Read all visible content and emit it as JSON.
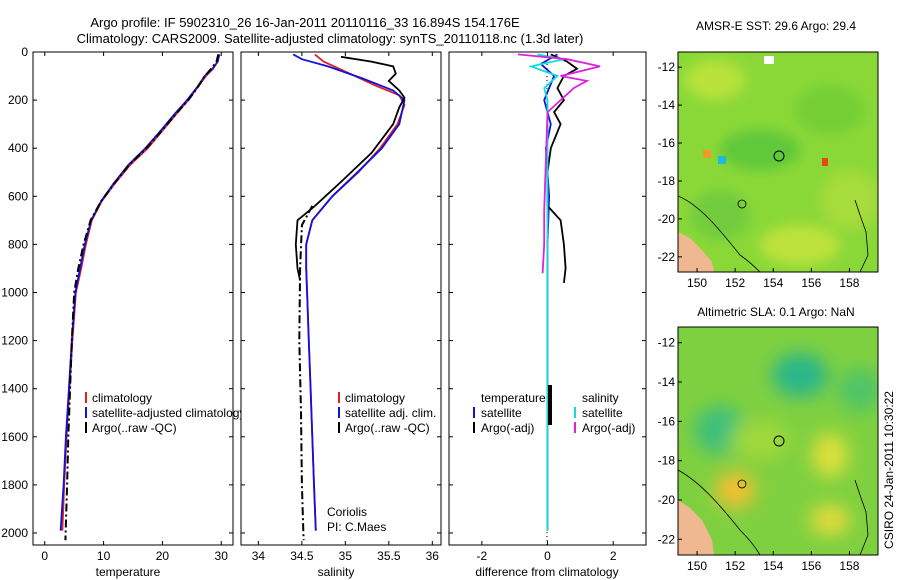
{
  "title_line1": "Argo profile: IF 5902310_26 16-Jan-2011 20110116_33 16.894S 154.176E",
  "title_line2": "Climatology: CARS2009. Satellite-adjusted climatology: synTS_20110118.nc (1.3d later)",
  "side_stamp": "CSIRO 24-Jan-2011 10:30:22",
  "colors": {
    "clim": "#dd2222",
    "sat": "#1111dd",
    "argo": "#000000",
    "cyan": "#11dddd",
    "magenta": "#dd22dd",
    "land": "#f0b890"
  },
  "chart_data": [
    {
      "id": "temperature",
      "type": "line",
      "xlabel": "temperature",
      "xlim": [
        -2,
        32
      ],
      "ylim": [
        2050,
        0
      ],
      "xticks": [
        0,
        10,
        20,
        30
      ],
      "yticks": [
        0,
        200,
        400,
        600,
        800,
        1000,
        1200,
        1400,
        1600,
        1800,
        2000
      ],
      "legend": [
        "climatology",
        "satellite-adjusted climatology",
        "Argo(..raw -QC)"
      ],
      "legend_position": "lower-right",
      "series": [
        {
          "name": "climatology",
          "color": "#dd2222",
          "style": "solid",
          "points": [
            [
              29.6,
              10
            ],
            [
              29.4,
              40
            ],
            [
              28.6,
              70
            ],
            [
              27.4,
              100
            ],
            [
              25.9,
              150
            ],
            [
              24.4,
              200
            ],
            [
              22.3,
              260
            ],
            [
              19.9,
              330
            ],
            [
              17.5,
              400
            ],
            [
              14.5,
              470
            ],
            [
              11.8,
              550
            ],
            [
              9.7,
              620
            ],
            [
              8.0,
              700
            ],
            [
              7.0,
              800
            ],
            [
              6.2,
              900
            ],
            [
              5.3,
              1000
            ],
            [
              4.7,
              1200
            ],
            [
              4.2,
              1400
            ],
            [
              3.7,
              1600
            ],
            [
              3.3,
              1800
            ],
            [
              3.0,
              1990
            ]
          ]
        },
        {
          "name": "satellite-adjusted climatology",
          "color": "#1111dd",
          "style": "solid",
          "points": [
            [
              29.7,
              10
            ],
            [
              29.4,
              40
            ],
            [
              28.5,
              70
            ],
            [
              27.2,
              100
            ],
            [
              25.8,
              150
            ],
            [
              24.2,
              200
            ],
            [
              22.0,
              260
            ],
            [
              19.6,
              330
            ],
            [
              17.1,
              400
            ],
            [
              14.2,
              470
            ],
            [
              11.6,
              550
            ],
            [
              9.6,
              620
            ],
            [
              7.9,
              700
            ],
            [
              6.8,
              800
            ],
            [
              6.0,
              900
            ],
            [
              5.2,
              1000
            ],
            [
              4.6,
              1200
            ],
            [
              4.1,
              1400
            ],
            [
              3.6,
              1600
            ],
            [
              3.2,
              1800
            ],
            [
              2.7,
              1990
            ]
          ]
        },
        {
          "name": "Argo(..raw -QC)",
          "color": "#000000",
          "style": "dashdot",
          "points": [
            [
              29.5,
              10
            ],
            [
              29.2,
              40
            ],
            [
              28.3,
              70
            ],
            [
              27.2,
              100
            ],
            [
              25.9,
              150
            ],
            [
              24.4,
              200
            ],
            [
              22.2,
              260
            ],
            [
              19.8,
              330
            ],
            [
              17.3,
              400
            ],
            [
              14.3,
              470
            ],
            [
              11.7,
              550
            ],
            [
              9.6,
              620
            ],
            [
              7.8,
              700
            ],
            [
              6.6,
              800
            ],
            [
              5.7,
              900
            ],
            [
              5.0,
              1000
            ],
            [
              4.6,
              1200
            ],
            [
              4.3,
              1400
            ],
            [
              4.0,
              1600
            ],
            [
              3.8,
              1800
            ],
            [
              3.5,
              2030
            ]
          ]
        }
      ]
    },
    {
      "id": "salinity",
      "type": "line",
      "xlabel": "salinity",
      "xlim": [
        33.8,
        36.1
      ],
      "ylim": [
        2050,
        0
      ],
      "xticks": [
        34,
        34.5,
        35,
        35.5,
        36
      ],
      "yticks": [
        0,
        200,
        400,
        600,
        800,
        1000,
        1200,
        1400,
        1600,
        1800,
        2000
      ],
      "legend": [
        "climatology",
        "satellite adj. clim.",
        "Argo(..raw -QC)"
      ],
      "legend_position": "lower-right",
      "annotation": [
        "Coriolis",
        "PI: C.Maes"
      ],
      "series": [
        {
          "name": "climatology",
          "color": "#dd2222",
          "style": "solid",
          "points": [
            [
              34.65,
              10
            ],
            [
              34.75,
              40
            ],
            [
              35.05,
              90
            ],
            [
              35.35,
              140
            ],
            [
              35.62,
              180
            ],
            [
              35.68,
              220
            ],
            [
              35.6,
              300
            ],
            [
              35.4,
              400
            ],
            [
              35.15,
              500
            ],
            [
              34.85,
              600
            ],
            [
              34.62,
              700
            ],
            [
              34.55,
              800
            ],
            [
              34.55,
              900
            ],
            [
              34.56,
              1000
            ],
            [
              34.58,
              1200
            ],
            [
              34.6,
              1400
            ],
            [
              34.62,
              1600
            ],
            [
              34.64,
              1800
            ],
            [
              34.66,
              1990
            ]
          ]
        },
        {
          "name": "satellite adj. clim.",
          "color": "#1111dd",
          "style": "solid",
          "points": [
            [
              34.4,
              10
            ],
            [
              34.5,
              30
            ],
            [
              34.8,
              60
            ],
            [
              35.2,
              110
            ],
            [
              35.55,
              160
            ],
            [
              35.68,
              200
            ],
            [
              35.62,
              300
            ],
            [
              35.42,
              400
            ],
            [
              35.14,
              500
            ],
            [
              34.85,
              600
            ],
            [
              34.62,
              700
            ],
            [
              34.55,
              800
            ],
            [
              34.55,
              900
            ],
            [
              34.56,
              1000
            ],
            [
              34.58,
              1200
            ],
            [
              34.6,
              1400
            ],
            [
              34.62,
              1600
            ],
            [
              34.64,
              1800
            ],
            [
              34.66,
              1990
            ]
          ]
        },
        {
          "name": "Argo(..raw -QC)",
          "color": "#000000",
          "style": "solid",
          "points": [
            [
              34.95,
              20
            ],
            [
              35.3,
              40
            ],
            [
              35.55,
              60
            ],
            [
              35.58,
              90
            ],
            [
              35.5,
              120
            ],
            [
              35.62,
              160
            ],
            [
              35.68,
              190
            ],
            [
              35.62,
              230
            ],
            [
              35.55,
              300
            ],
            [
              35.3,
              420
            ],
            [
              34.95,
              540
            ],
            [
              34.65,
              640
            ],
            [
              34.45,
              700
            ],
            [
              34.43,
              800
            ],
            [
              34.45,
              900
            ],
            [
              34.48,
              950
            ]
          ]
        },
        {
          "name": "Argo(..raw -QC) deep",
          "color": "#000000",
          "style": "dashdot",
          "points": [
            [
              34.62,
              640
            ],
            [
              34.5,
              720
            ],
            [
              34.48,
              900
            ],
            [
              34.47,
              1200
            ],
            [
              34.49,
              1500
            ],
            [
              34.5,
              1800
            ],
            [
              34.52,
              2030
            ]
          ]
        }
      ]
    },
    {
      "id": "difference",
      "type": "line",
      "xlabel": "difference from climatology",
      "xlim": [
        -3,
        3
      ],
      "ylim": [
        2050,
        0
      ],
      "xticks": [
        -2,
        0,
        2
      ],
      "yticks": [
        0,
        200,
        400,
        600,
        800,
        1000,
        1200,
        1400,
        1600,
        1800,
        2000
      ],
      "legend_left_title": "temperature",
      "legend_left": [
        "satellite",
        "Argo(-adj)"
      ],
      "legend_right_title": "salinity",
      "legend_right": [
        "satellite",
        "Argo(-adj)"
      ],
      "series": [
        {
          "name": "temperature satellite",
          "color": "#1111dd",
          "style": "solid",
          "points": [
            [
              0.3,
              10
            ],
            [
              -0.2,
              50
            ],
            [
              0.2,
              100
            ],
            [
              -0.1,
              200
            ],
            [
              0.1,
              300
            ],
            [
              -0.05,
              400
            ],
            [
              0.05,
              600
            ],
            [
              0.0,
              800
            ],
            [
              0.0,
              1200
            ],
            [
              0.0,
              1600
            ],
            [
              0.0,
              1990
            ]
          ]
        },
        {
          "name": "temperature Argo(-adj)",
          "color": "#000000",
          "style": "solid",
          "points": [
            [
              0.1,
              10
            ],
            [
              0.6,
              40
            ],
            [
              0.9,
              70
            ],
            [
              0.5,
              100
            ],
            [
              0.3,
              150
            ],
            [
              0.5,
              200
            ],
            [
              0.2,
              250
            ],
            [
              0.4,
              300
            ],
            [
              0.1,
              400
            ],
            [
              0.0,
              500
            ],
            [
              0.0,
              640
            ],
            [
              0.4,
              700
            ],
            [
              0.5,
              800
            ],
            [
              0.55,
              900
            ],
            [
              0.5,
              960
            ]
          ]
        },
        {
          "name": "salinity satellite",
          "color": "#11dddd",
          "style": "solid",
          "points": [
            [
              -0.3,
              10
            ],
            [
              0.5,
              30
            ],
            [
              -0.5,
              60
            ],
            [
              0.3,
              100
            ],
            [
              -0.1,
              150
            ],
            [
              0.0,
              200
            ],
            [
              0.0,
              400
            ],
            [
              0.0,
              800
            ],
            [
              0.0,
              1400
            ],
            [
              0.0,
              1600
            ],
            [
              0.0,
              1990
            ]
          ]
        },
        {
          "name": "salinity Argo(-adj)",
          "color": "#dd22dd",
          "style": "solid",
          "points": [
            [
              -0.9,
              10
            ],
            [
              0.6,
              30
            ],
            [
              1.6,
              60
            ],
            [
              1.0,
              80
            ],
            [
              0.4,
              100
            ],
            [
              1.2,
              120
            ],
            [
              0.8,
              150
            ],
            [
              0.0,
              250
            ],
            [
              -0.1,
              660
            ],
            [
              -0.1,
              800
            ],
            [
              -0.15,
              920
            ]
          ]
        }
      ]
    }
  ],
  "maps": [
    {
      "title": "AMSR-E SST: 29.6 Argo: 29.4",
      "xticks": [
        150,
        152,
        154,
        156,
        158
      ],
      "yticks": [
        -12,
        -14,
        -16,
        -18,
        -20,
        -22
      ]
    },
    {
      "title": "Altimetric SLA: 0.1 Argo: NaN",
      "xticks": [
        150,
        152,
        154,
        156,
        158
      ],
      "yticks": [
        -12,
        -14,
        -16,
        -18,
        -20,
        -22
      ]
    }
  ]
}
